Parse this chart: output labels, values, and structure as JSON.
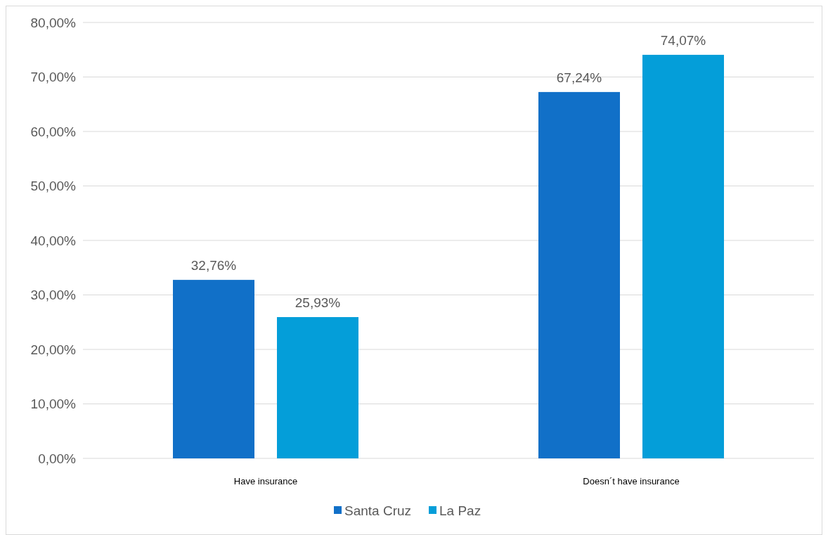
{
  "chart_data": {
    "type": "bar",
    "categories": [
      "Have insurance",
      "Doesn´t have insurance"
    ],
    "series": [
      {
        "name": "Santa Cruz",
        "color": "#1170c8",
        "values": [
          32.76,
          67.24
        ],
        "value_labels": [
          "32,76%",
          "67,24%"
        ]
      },
      {
        "name": "La Paz",
        "color": "#049ed9",
        "values": [
          25.93,
          74.07
        ],
        "value_labels": [
          "25,93%",
          "74,07%"
        ]
      }
    ],
    "ylim": [
      0,
      80
    ],
    "yticks": [
      {
        "value": 0,
        "label": "0,00%"
      },
      {
        "value": 10,
        "label": "10,00%"
      },
      {
        "value": 20,
        "label": "20,00%"
      },
      {
        "value": 30,
        "label": "30,00%"
      },
      {
        "value": 40,
        "label": "40,00%"
      },
      {
        "value": 50,
        "label": "50,00%"
      },
      {
        "value": 60,
        "label": "60,00%"
      },
      {
        "value": 70,
        "label": "70,00%"
      },
      {
        "value": 80,
        "label": "80,00%"
      }
    ],
    "grid": "y",
    "legend": "bottom"
  }
}
